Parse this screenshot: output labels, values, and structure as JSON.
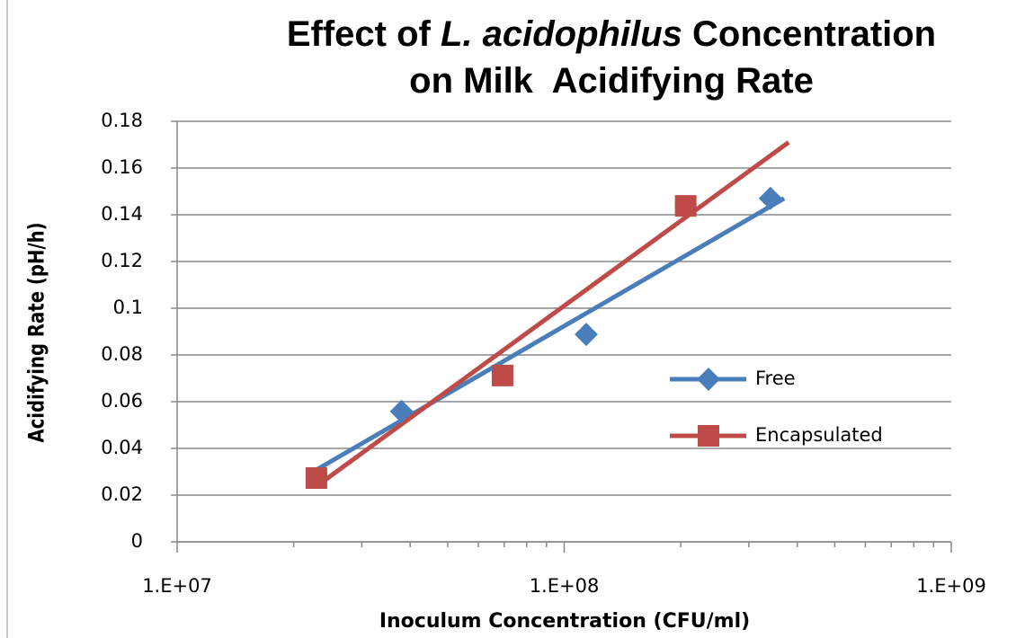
{
  "chart_data": {
    "type": "scatter",
    "title": {
      "lines": [
        [
          "Effect of ",
          "L. acidophilus",
          " Concentration"
        ],
        [
          "on Milk  Acidifying Rate"
        ]
      ]
    },
    "x_label": "Inoculum Concentration (CFU/ml)",
    "y_label": "Acidifying Rate (pH/h)",
    "x_scale": "log",
    "xlim": [
      10000000,
      1000000000
    ],
    "xticks": [
      {
        "value": 10000000,
        "label": "1.E+07"
      },
      {
        "value": 100000000,
        "label": "1.E+08"
      },
      {
        "value": 1000000000,
        "label": "1.E+09"
      }
    ],
    "ylim": [
      0,
      0.18
    ],
    "yticks": [
      0,
      0.02,
      0.04,
      0.06,
      0.08,
      0.1,
      0.12,
      0.14,
      0.16,
      0.18
    ],
    "grid": true,
    "legend": "right",
    "series": [
      {
        "name": "Free",
        "color": "#4a7ebb",
        "marker": "diamond",
        "x": [
          38000000,
          114000000,
          341000000
        ],
        "values": [
          0.0558,
          0.0888,
          0.147
        ],
        "trendline": {
          "x": [
            23000000,
            370000000
          ],
          "values": [
            0.031,
            0.147
          ]
        }
      },
      {
        "name": "Encapsulated",
        "color": "#be4b48",
        "marker": "square",
        "x": [
          22900000,
          69300000,
          206000000
        ],
        "values": [
          0.0273,
          0.0712,
          0.1438
        ],
        "trendline": {
          "x": [
            23000000,
            380000000
          ],
          "values": [
            0.024,
            0.171
          ]
        }
      }
    ]
  }
}
